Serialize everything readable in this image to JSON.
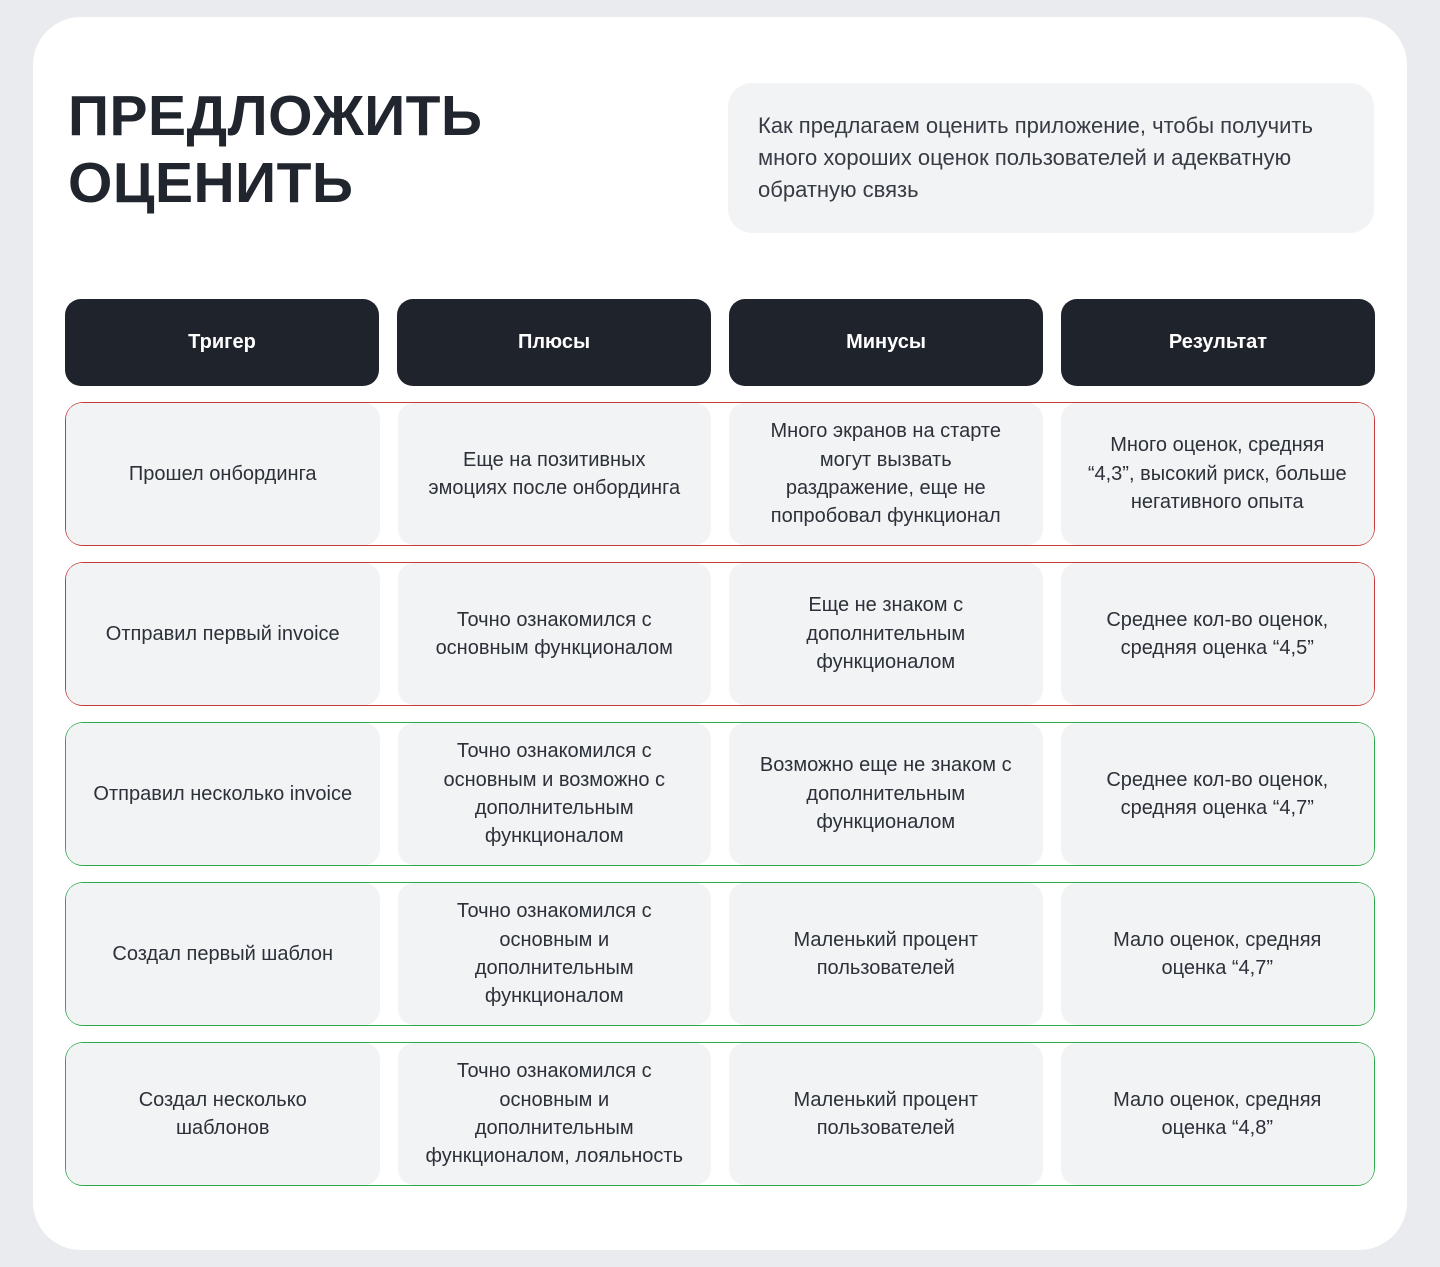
{
  "page": {
    "title": "ПРЕДЛОЖИТЬ ОЦЕНИТЬ",
    "description": "Как предлагаем оценить приложение, чтобы получить много хороших оценок пользователей и адекватную обратную связь"
  },
  "table": {
    "headers": [
      "Тригер",
      "Плюсы",
      "Минусы",
      "Результат"
    ],
    "rows": [
      {
        "status": "negative",
        "trigger": "Прошел онбординга",
        "pluses": "Еще на позитивных эмоциях после онбординга",
        "minuses": "Много экранов на старте могут вызвать раздражение, еще не попробовал функционал",
        "result": "Много оценок, средняя “4,3”, высокий риск, больше негативного опыта"
      },
      {
        "status": "negative",
        "trigger": "Отправил первый invoice",
        "pluses": "Точно ознакомился с основным функционалом",
        "minuses": "Еще не знаком с дополнительным функционалом",
        "result": "Среднее кол-во оценок, средняя оценка “4,5”"
      },
      {
        "status": "positive",
        "trigger": "Отправил несколько invoice",
        "pluses": "Точно ознакомился с основным и возможно с дополнительным функционалом",
        "minuses": "Возможно еще не знаком с дополнительным функционалом",
        "result": "Среднее кол-во оценок, средняя оценка “4,7”"
      },
      {
        "status": "positive",
        "trigger": "Создал первый шаблон",
        "pluses": "Точно ознакомился с основным и дополнительным функционалом",
        "minuses": "Маленький процент пользователей",
        "result": "Мало оценок, средняя оценка “4,7”"
      },
      {
        "status": "positive",
        "trigger": "Создал несколько шаблонов",
        "pluses": "Точно ознакомился с основным и дополнительным функционалом, лояльность",
        "minuses": "Маленький процент пользователей",
        "result": "Мало оценок, средняя оценка “4,8”"
      }
    ]
  },
  "colors": {
    "page_bg": "#E9EBEE",
    "card_bg": "#FFFFFF",
    "header_bg": "#1F232C",
    "header_text": "#FFFFFF",
    "cell_bg": "#F2F3F5",
    "title_text": "#21252E",
    "body_text": "#2C3139",
    "negative_border": "#C43B3B",
    "positive_border": "#2BA94E"
  }
}
